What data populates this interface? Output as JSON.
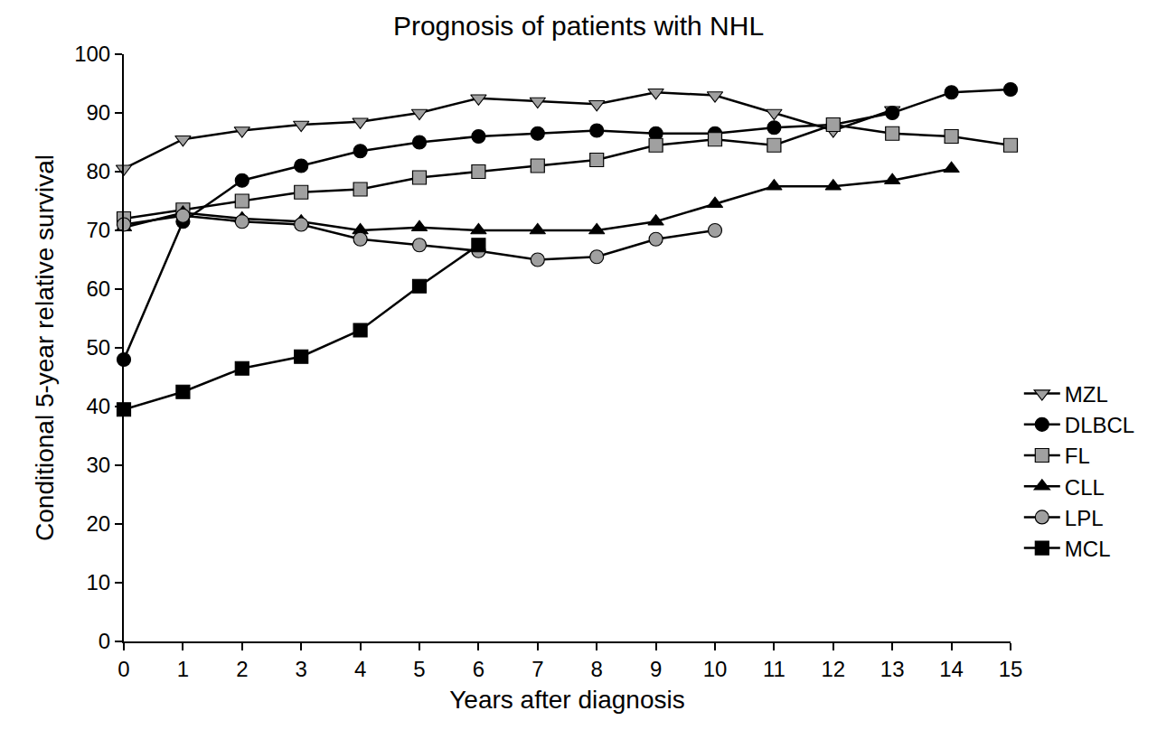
{
  "chart_data": {
    "type": "line",
    "title": "Prognosis of patients with NHL",
    "x_label": "Years after diagnosis",
    "y_label": "Conditional 5-year relative survival",
    "x": [
      0,
      1,
      2,
      3,
      4,
      5,
      6,
      7,
      8,
      9,
      10,
      11,
      12,
      13,
      14,
      15
    ],
    "series": [
      {
        "name": "MZL",
        "color": "#a0a0a0",
        "marker": "triangle-down",
        "values": [
          80.5,
          85.5,
          87,
          88,
          88.5,
          90,
          92.5,
          92,
          91.5,
          93.5,
          93,
          90,
          87,
          90.5,
          null,
          null
        ]
      },
      {
        "name": "DLBCL",
        "color": "#000000",
        "marker": "circle",
        "values": [
          48,
          71.5,
          78.5,
          81,
          83.5,
          85,
          86,
          86.5,
          87,
          86.5,
          86.5,
          87.5,
          88,
          90,
          93.5,
          94
        ]
      },
      {
        "name": "FL",
        "color": "#a0a0a0",
        "marker": "square",
        "values": [
          72,
          73.5,
          75,
          76.5,
          77,
          79,
          80,
          81,
          82,
          84.5,
          85.5,
          84.5,
          88,
          86.5,
          86,
          84.5
        ]
      },
      {
        "name": "CLL",
        "color": "#000000",
        "marker": "triangle-up",
        "values": [
          70.5,
          73,
          72,
          71.5,
          70,
          70.5,
          70,
          70,
          70,
          71.5,
          74.5,
          77.5,
          77.5,
          78.5,
          80.5,
          null
        ]
      },
      {
        "name": "LPL",
        "color": "#a0a0a0",
        "marker": "circle",
        "values": [
          71,
          72.5,
          71.5,
          71,
          68.5,
          67.5,
          66.5,
          65,
          65.5,
          68.5,
          70,
          null,
          null,
          null,
          null,
          null
        ]
      },
      {
        "name": "MCL",
        "color": "#000000",
        "marker": "square",
        "values": [
          39.5,
          42.5,
          46.5,
          48.5,
          53,
          60.5,
          67.5,
          null,
          null,
          null,
          null,
          null,
          null,
          null,
          null,
          null
        ]
      }
    ],
    "xlim": [
      0,
      15
    ],
    "xticks": [
      0,
      1,
      2,
      3,
      4,
      5,
      6,
      7,
      8,
      9,
      10,
      11,
      12,
      13,
      14,
      15
    ],
    "ylim": [
      0,
      100
    ],
    "yticks": [
      0,
      10,
      20,
      30,
      40,
      50,
      60,
      70,
      80,
      90,
      100
    ],
    "grid": false,
    "legend": "right"
  }
}
